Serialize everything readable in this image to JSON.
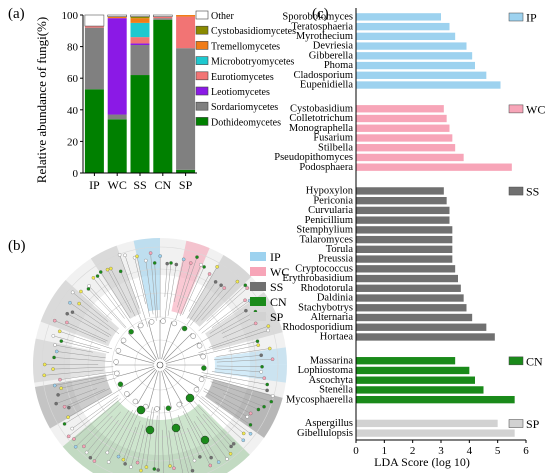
{
  "chart_data": [
    {
      "type": "bar",
      "panel": "(a)",
      "ylabel": "Relative abundance of fungi(%)",
      "ylim": [
        0,
        100
      ],
      "yticks": [
        "0",
        "20",
        "40",
        "60",
        "80",
        "100"
      ],
      "categories": [
        "IP",
        "WC",
        "SS",
        "CN",
        "SP"
      ],
      "series": [
        {
          "name": "Dothideomycetes",
          "color": "#008000",
          "values": [
            53,
            34,
            62,
            97,
            2
          ]
        },
        {
          "name": "Sordariomycetes",
          "color": "#808080",
          "values": [
            39,
            3,
            19,
            1,
            77
          ]
        },
        {
          "name": "Leotiomycetes",
          "color": "#8b19e6",
          "values": [
            0,
            61,
            1,
            0,
            0
          ]
        },
        {
          "name": "Eurotiomycetes",
          "color": "#f27474",
          "values": [
            1,
            0,
            4,
            1,
            20
          ]
        },
        {
          "name": "Microbotryomycetes",
          "color": "#1ec8cf",
          "values": [
            0,
            0,
            9,
            0,
            0
          ]
        },
        {
          "name": "Tremellomycetes",
          "color": "#f07c18",
          "values": [
            0,
            1,
            3,
            0,
            1
          ]
        },
        {
          "name": "Cystobasidiomycetes",
          "color": "#8a8a00",
          "values": [
            0,
            0,
            1,
            0,
            0
          ]
        },
        {
          "name": "Other",
          "color": "#ffffff",
          "values": [
            7,
            1,
            1,
            1,
            0
          ]
        }
      ]
    },
    {
      "type": "bar",
      "orientation": "horizontal",
      "panel": "(c)",
      "xlabel": "LDA Score (log 10)",
      "xlim": [
        0,
        6
      ],
      "xticks": [
        "0",
        "1",
        "2",
        "3",
        "4",
        "5",
        "6"
      ],
      "groups": [
        {
          "name": "IP",
          "color": "#9dd2ef",
          "taxa": [
            {
              "label": "Sporobolomyces",
              "value": 3.0
            },
            {
              "label": "Teratosphaeria",
              "value": 3.3
            },
            {
              "label": "Myrothecium",
              "value": 3.5
            },
            {
              "label": "Devriesia",
              "value": 3.9
            },
            {
              "label": "Gibberella",
              "value": 4.1
            },
            {
              "label": "Phoma",
              "value": 4.2
            },
            {
              "label": "Cladosporium",
              "value": 4.6
            },
            {
              "label": "Eupenidiella",
              "value": 5.1
            }
          ]
        },
        {
          "name": "WC",
          "color": "#f7a5b8",
          "taxa": [
            {
              "label": "Cystobasidium",
              "value": 3.1
            },
            {
              "label": "Colletotrichum",
              "value": 3.2
            },
            {
              "label": "Monographella",
              "value": 3.3
            },
            {
              "label": "Fusarium",
              "value": 3.4
            },
            {
              "label": "Stilbella",
              "value": 3.5
            },
            {
              "label": "Pseudopithomyces",
              "value": 3.8
            },
            {
              "label": "Podosphaera",
              "value": 5.5
            }
          ]
        },
        {
          "name": "SS",
          "color": "#707070",
          "taxa": [
            {
              "label": "Hypoxylon",
              "value": 3.1
            },
            {
              "label": "Periconia",
              "value": 3.2
            },
            {
              "label": "Curvularia",
              "value": 3.3
            },
            {
              "label": "Penicillium",
              "value": 3.3
            },
            {
              "label": "Stemphylium",
              "value": 3.4
            },
            {
              "label": "Talaromyces",
              "value": 3.4
            },
            {
              "label": "Torula",
              "value": 3.4
            },
            {
              "label": "Preussia",
              "value": 3.4
            },
            {
              "label": "Cryptococcus",
              "value": 3.5
            },
            {
              "label": "Erythrobasidium",
              "value": 3.6
            },
            {
              "label": "Rhodotorula",
              "value": 3.7
            },
            {
              "label": "Daldinia",
              "value": 3.8
            },
            {
              "label": "Stachybotrys",
              "value": 3.9
            },
            {
              "label": "Alternaria",
              "value": 4.1
            },
            {
              "label": "Rhodosporidium",
              "value": 4.6
            },
            {
              "label": "Hortaea",
              "value": 4.9
            }
          ]
        },
        {
          "name": "CN",
          "color": "#1a8a1a",
          "taxa": [
            {
              "label": "Massarina",
              "value": 3.5
            },
            {
              "label": "Lophiostoma",
              "value": 4.0
            },
            {
              "label": "Ascochyta",
              "value": 4.2
            },
            {
              "label": "Stenella",
              "value": 4.5
            },
            {
              "label": "Mycosphaerella",
              "value": 5.6
            }
          ]
        },
        {
          "name": "SP",
          "color": "#d2d2d2",
          "taxa": [
            {
              "label": "Aspergillus",
              "value": 5.0
            },
            {
              "label": "Gibellulopsis",
              "value": 5.6
            }
          ]
        }
      ]
    }
  ],
  "panel_b": {
    "label": "(b)",
    "legend": [
      {
        "name": "IP",
        "color": "#9dd2ef"
      },
      {
        "name": "WC",
        "color": "#f7a5b8"
      },
      {
        "name": "SS",
        "color": "#707070"
      },
      {
        "name": "CN",
        "color": "#1a8a1a"
      },
      {
        "name": "SP",
        "color": "#d2d2d2"
      }
    ]
  }
}
